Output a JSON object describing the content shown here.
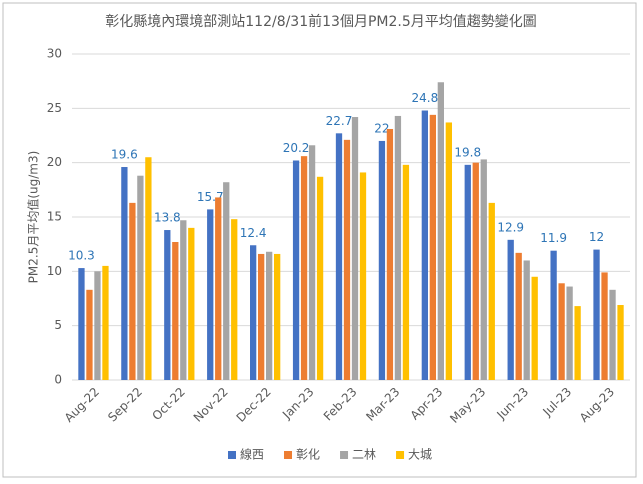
{
  "chart_data": {
    "type": "bar",
    "title": "彰化縣境內環境部測站112/8/31前13個月PM2.5月平均值趨勢變化圖",
    "y_label": "PM2.5月平均值(ug/m3)",
    "categories": [
      "Aug-22",
      "Sep-22",
      "Oct-22",
      "Nov-22",
      "Dec-22",
      "Jan-23",
      "Feb-23",
      "Mar-23",
      "Apr-23",
      "May-23",
      "Jun-23",
      "Jul-23",
      "Aug-23"
    ],
    "series": [
      {
        "name": "線西",
        "color": "#4472c4",
        "values": [
          10.3,
          19.6,
          13.8,
          15.7,
          12.4,
          20.2,
          22.7,
          22,
          24.8,
          19.8,
          12.9,
          11.9,
          12
        ]
      },
      {
        "name": "彰化",
        "color": "#ed7d31",
        "values": [
          8.3,
          16.3,
          12.7,
          16.8,
          11.6,
          20.6,
          22.1,
          23.1,
          24.4,
          20.0,
          11.7,
          8.9,
          9.9
        ]
      },
      {
        "name": "二林",
        "color": "#a5a5a5",
        "values": [
          10.0,
          18.8,
          14.7,
          18.2,
          11.8,
          21.6,
          24.2,
          24.3,
          27.4,
          20.3,
          11.0,
          8.6,
          8.3
        ]
      },
      {
        "name": "大城",
        "color": "#ffc000",
        "values": [
          10.5,
          20.5,
          14.0,
          14.8,
          11.6,
          18.7,
          19.1,
          19.8,
          23.7,
          16.3,
          9.5,
          6.8,
          6.9
        ]
      }
    ],
    "ylim": [
      0,
      30
    ],
    "yticks": [
      0,
      5,
      10,
      15,
      20,
      25,
      30
    ],
    "grid": true,
    "legend": "bottom"
  }
}
